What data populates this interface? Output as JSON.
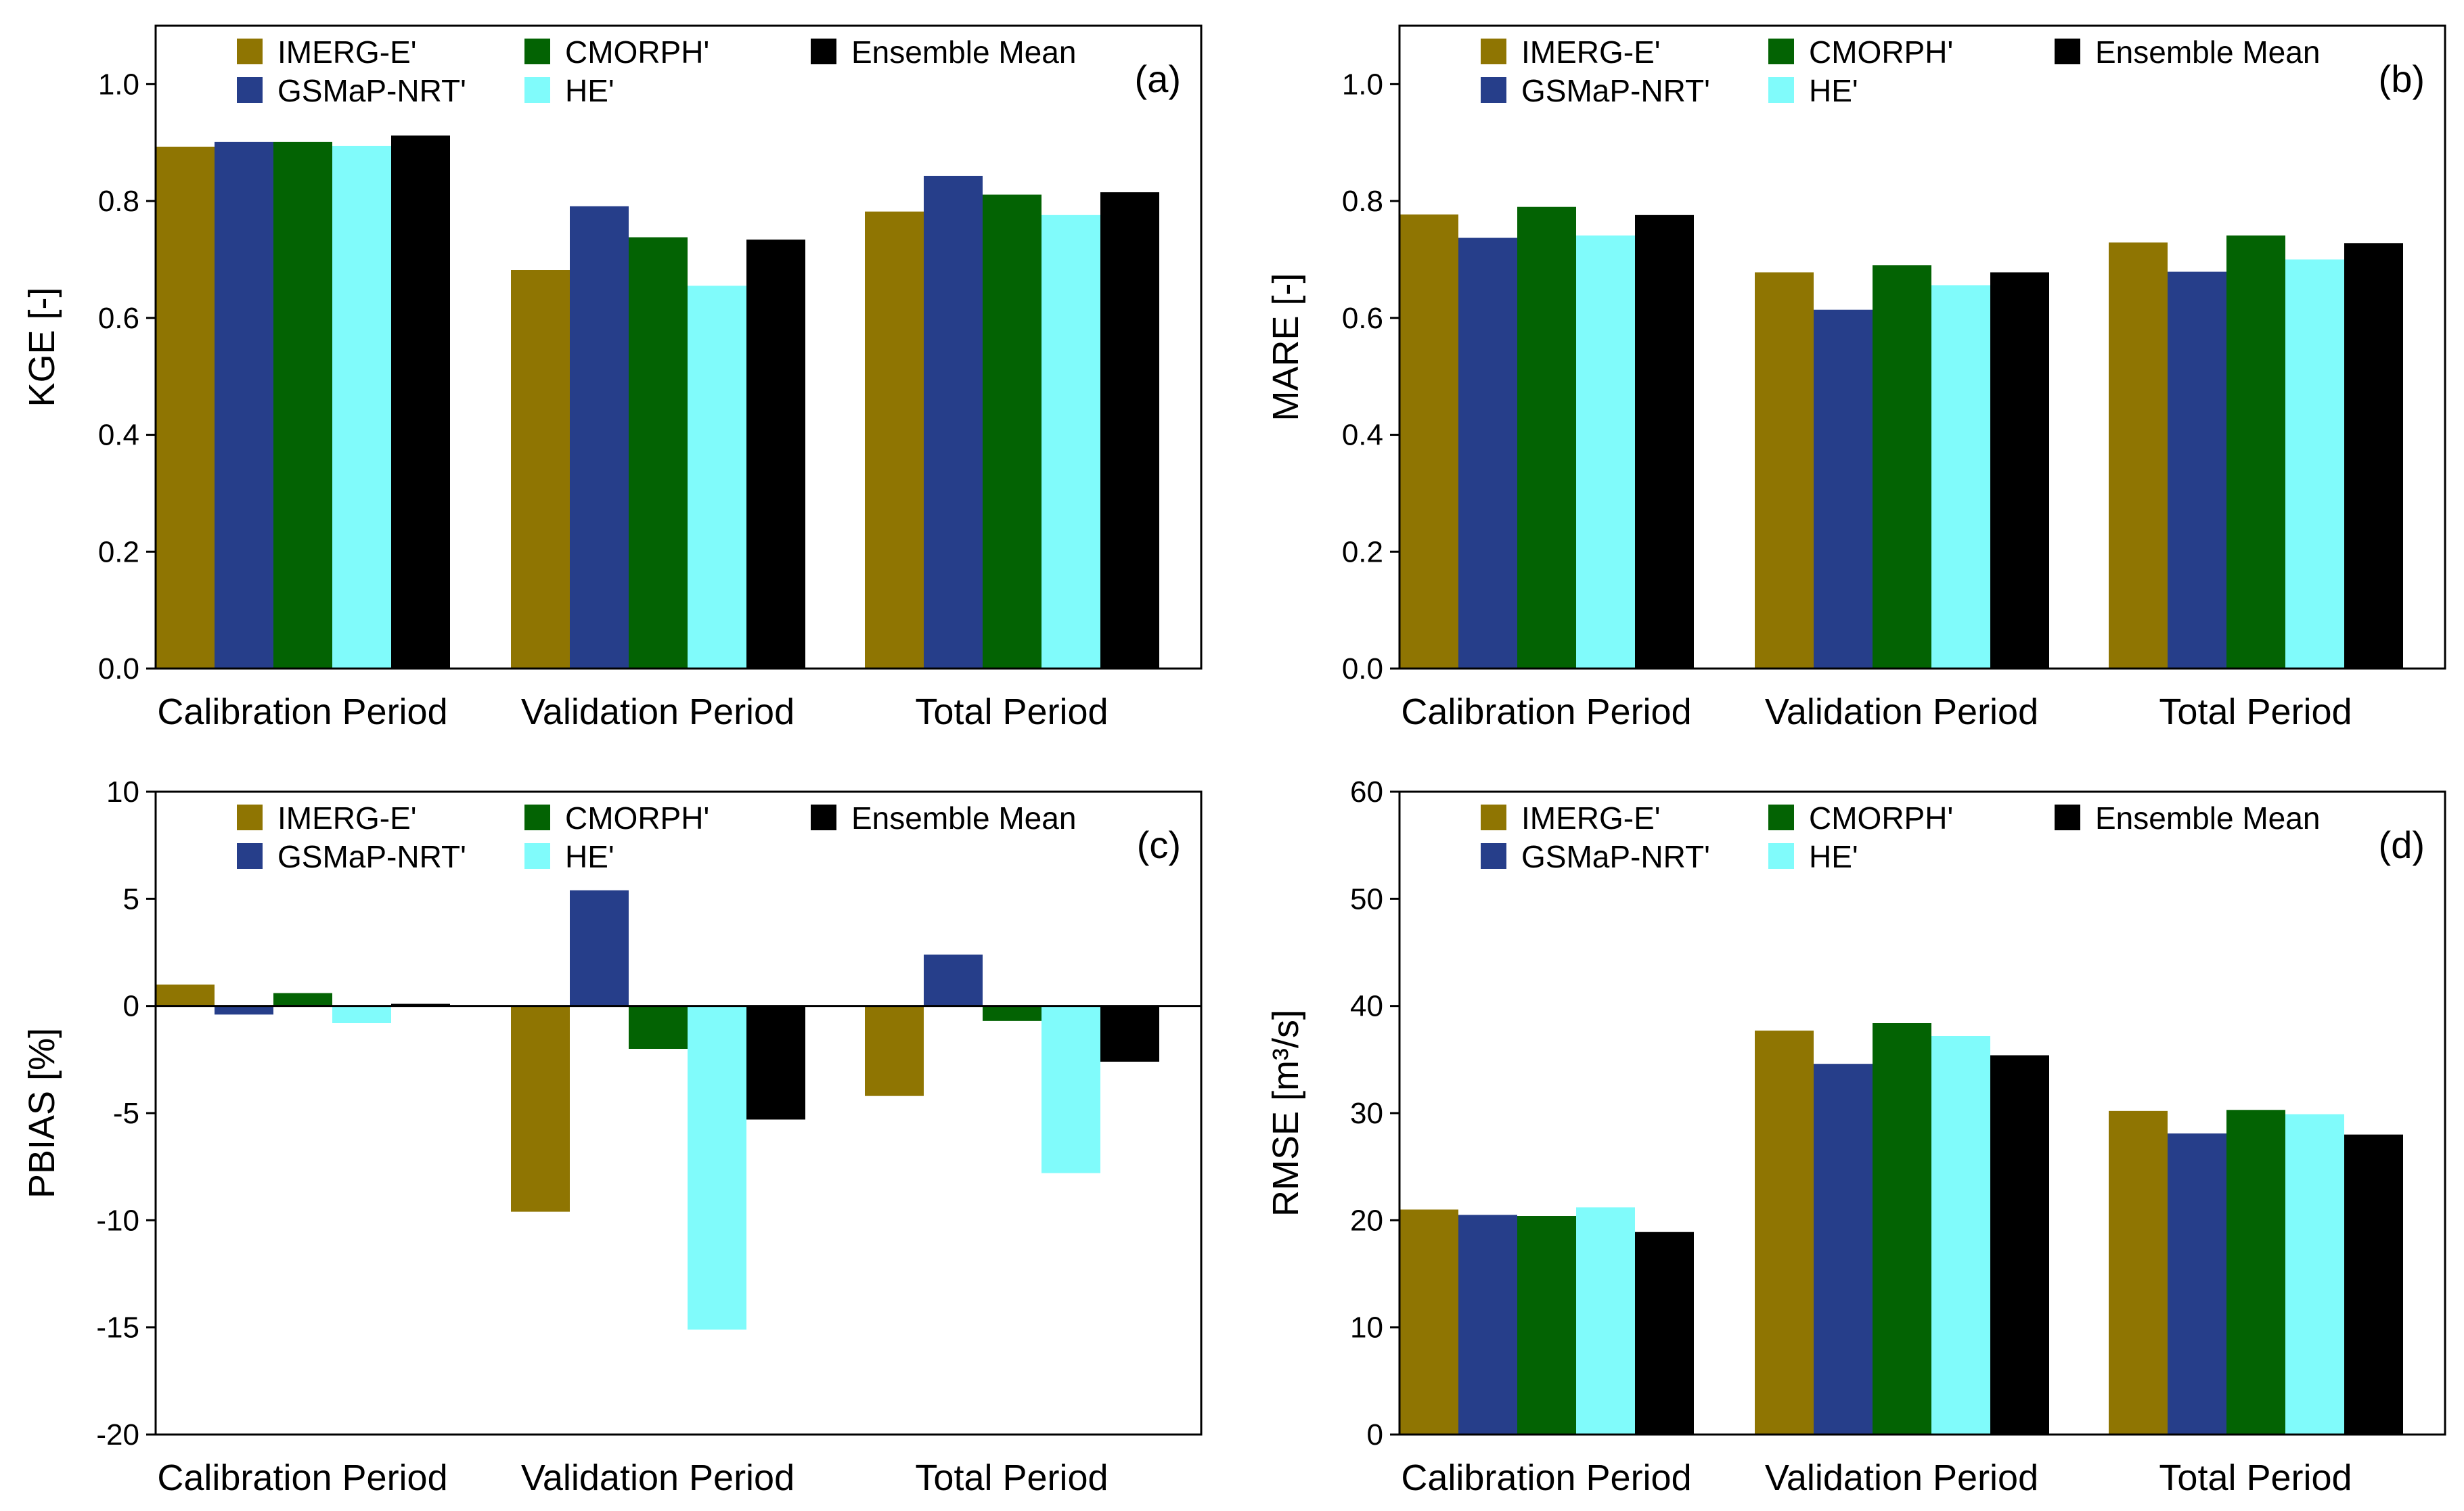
{
  "chart_data": {
    "type": "bar",
    "categories": [
      "Calibration Period",
      "Validation Period",
      "Total Period"
    ],
    "series_names": [
      "IMERG-E'",
      "GSMaP-NRT'",
      "CMORPH'",
      "HE'",
      "Ensemble Mean"
    ],
    "series_colors": [
      "#8f7502",
      "#263e8a",
      "#036303",
      "#80fbfb",
      "#000000"
    ],
    "legend_position": "top",
    "panels": [
      {
        "id": "a",
        "label": "(a)",
        "ylabel": "KGE [-]",
        "ylim": [
          0,
          1.1
        ],
        "yticks": [
          "0.0",
          "0.2",
          "0.4",
          "0.6",
          "0.8",
          "1.0"
        ],
        "ytick_values": [
          0,
          0.2,
          0.4,
          0.6,
          0.8,
          1.0
        ],
        "series": [
          {
            "name": "IMERG-E'",
            "values": [
              0.893,
              0.682,
              0.782
            ]
          },
          {
            "name": "GSMaP-NRT'",
            "values": [
              0.901,
              0.791,
              0.843
            ]
          },
          {
            "name": "CMORPH'",
            "values": [
              0.901,
              0.738,
              0.811
            ]
          },
          {
            "name": "HE'",
            "values": [
              0.894,
              0.655,
              0.776
            ]
          },
          {
            "name": "Ensemble Mean",
            "values": [
              0.912,
              0.734,
              0.815
            ]
          }
        ]
      },
      {
        "id": "b",
        "label": "(b)",
        "ylabel": "MARE [-]",
        "ylim": [
          0,
          1.1
        ],
        "yticks": [
          "0.0",
          "0.2",
          "0.4",
          "0.6",
          "0.8",
          "1.0"
        ],
        "ytick_values": [
          0,
          0.2,
          0.4,
          0.6,
          0.8,
          1.0
        ],
        "series": [
          {
            "name": "IMERG-E'",
            "values": [
              0.777,
              0.678,
              0.729
            ]
          },
          {
            "name": "GSMaP-NRT'",
            "values": [
              0.737,
              0.614,
              0.679
            ]
          },
          {
            "name": "CMORPH'",
            "values": [
              0.79,
              0.69,
              0.741
            ]
          },
          {
            "name": "HE'",
            "values": [
              0.741,
              0.656,
              0.7
            ]
          },
          {
            "name": "Ensemble Mean",
            "values": [
              0.776,
              0.678,
              0.728
            ]
          }
        ]
      },
      {
        "id": "c",
        "label": "(c)",
        "ylabel": "PBIAS [%]",
        "ylim": [
          -20,
          10
        ],
        "yticks": [
          "-20",
          "-15",
          "-10",
          "-5",
          "0",
          "5",
          "10"
        ],
        "ytick_values": [
          -20,
          -15,
          -10,
          -5,
          0,
          5,
          10
        ],
        "zero_line": true,
        "series": [
          {
            "name": "IMERG-E'",
            "values": [
              1.0,
              -9.6,
              -4.2
            ]
          },
          {
            "name": "GSMaP-NRT'",
            "values": [
              -0.4,
              5.4,
              2.4
            ]
          },
          {
            "name": "CMORPH'",
            "values": [
              0.6,
              -2.0,
              -0.7
            ]
          },
          {
            "name": "HE'",
            "values": [
              -0.8,
              -15.1,
              -7.8
            ]
          },
          {
            "name": "Ensemble Mean",
            "values": [
              0.1,
              -5.3,
              -2.6
            ]
          }
        ]
      },
      {
        "id": "d",
        "label": "(d)",
        "ylabel": "RMSE  [m³/s]",
        "ylim": [
          0,
          60
        ],
        "yticks": [
          "0",
          "10",
          "20",
          "30",
          "40",
          "50",
          "60"
        ],
        "ytick_values": [
          0,
          10,
          20,
          30,
          40,
          50,
          60
        ],
        "series": [
          {
            "name": "IMERG-E'",
            "values": [
              21.0,
              37.7,
              30.2
            ]
          },
          {
            "name": "GSMaP-NRT'",
            "values": [
              20.5,
              34.6,
              28.1
            ]
          },
          {
            "name": "CMORPH'",
            "values": [
              20.4,
              38.4,
              30.3
            ]
          },
          {
            "name": "HE'",
            "values": [
              21.2,
              37.2,
              29.9
            ]
          },
          {
            "name": "Ensemble Mean",
            "values": [
              18.9,
              35.4,
              28.0
            ]
          }
        ]
      }
    ]
  }
}
